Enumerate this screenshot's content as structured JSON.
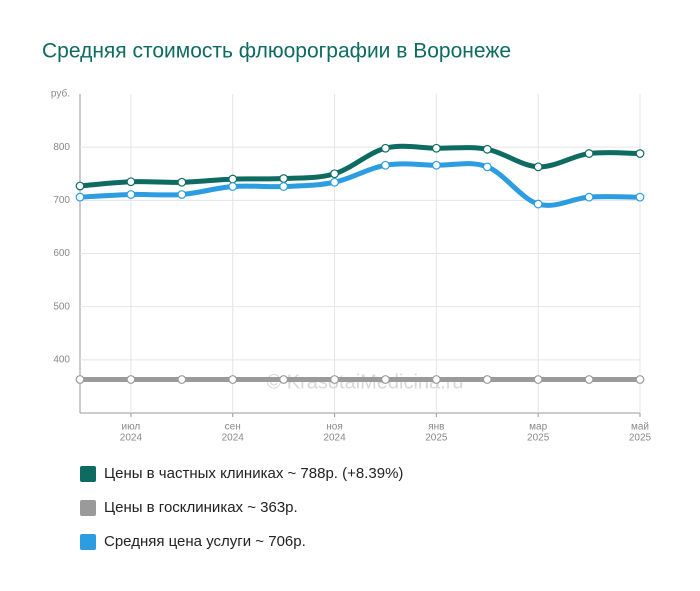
{
  "chart_data": {
    "type": "line",
    "title": "Средняя стоимость флюорографии в Воронеже",
    "ylabel": "руб.",
    "watermark": "© KrasotaiMedicina.ru",
    "categories": [
      null,
      [
        "июл",
        "2024"
      ],
      null,
      [
        "сен",
        "2024"
      ],
      null,
      [
        "ноя",
        "2024"
      ],
      null,
      [
        "янв",
        "2025"
      ],
      null,
      [
        "мар",
        "2025"
      ],
      null,
      [
        "май",
        "2025"
      ]
    ],
    "series": [
      {
        "name": "Цены в частных клиниках ~ 788р. (+8.39%)",
        "color": "#0e6b62",
        "values": [
          727,
          735,
          734,
          740,
          741,
          750,
          798,
          798,
          796,
          763,
          788,
          788
        ]
      },
      {
        "name": "Цены в госклиниках ~ 363р.",
        "color": "#9a9a9a",
        "values": [
          363,
          363,
          363,
          363,
          363,
          363,
          363,
          363,
          363,
          363,
          363,
          363
        ]
      },
      {
        "name": "Средняя цена услуги ~ 706р.",
        "color": "#2b9de0",
        "values": [
          706,
          711,
          711,
          726,
          726,
          734,
          766,
          766,
          763,
          693,
          706,
          706
        ]
      }
    ],
    "ylim": [
      300,
      900
    ],
    "yticks": [
      400,
      500,
      600,
      700,
      800
    ],
    "grid": true
  }
}
